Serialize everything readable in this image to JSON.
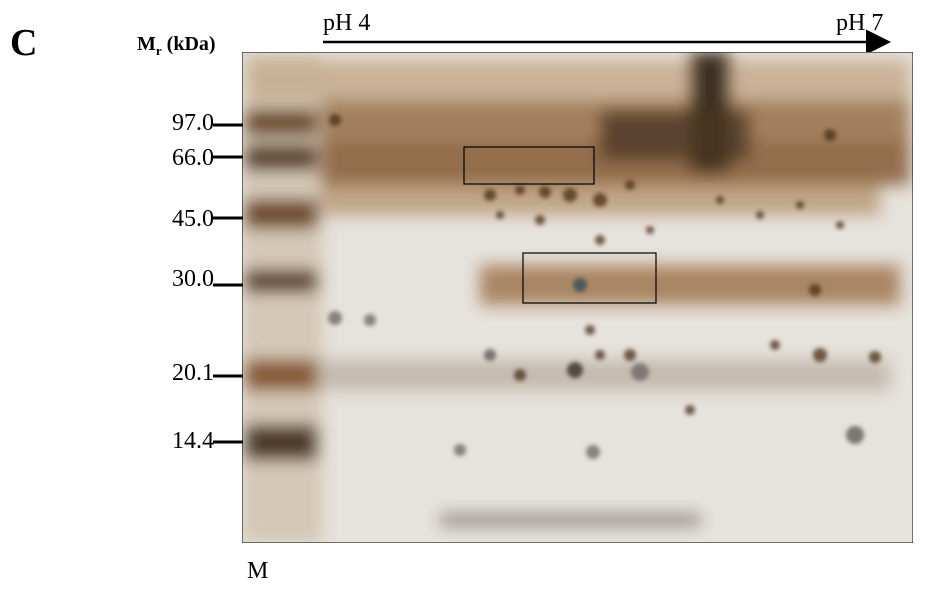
{
  "panel_label": "C",
  "y_axis_label": {
    "main": "M",
    "subscript": "r",
    "suffix": " (kDa)"
  },
  "ph_axis": {
    "start": "pH 4",
    "end": "pH 7"
  },
  "markers": [
    "97.0",
    "66.0",
    "45.0",
    "30.0",
    "20.1",
    "14.4"
  ],
  "lane_label": "M"
}
